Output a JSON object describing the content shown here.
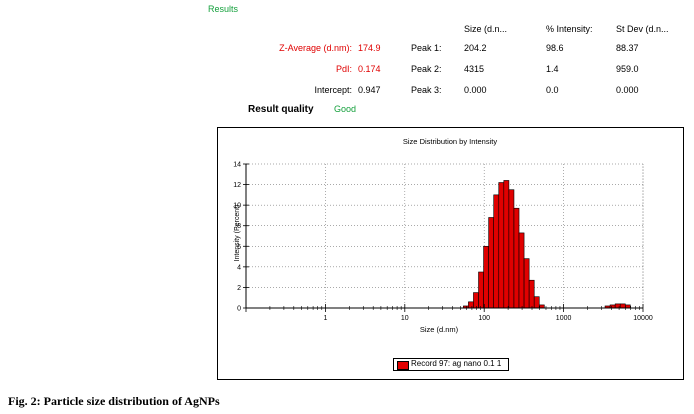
{
  "results": {
    "header": "Results",
    "columns": [
      "Size (d.n...",
      "% Intensity:",
      "St Dev (d.n..."
    ],
    "zavg_label": "Z-Average (d.nm):",
    "zavg_value": "174.9",
    "pdi_label": "PdI:",
    "pdi_value": "0.174",
    "intercept_label": "Intercept:",
    "intercept_value": "0.947",
    "quality_label": "Result quality",
    "quality_value": "Good",
    "peaks": [
      {
        "label": "Peak 1:",
        "size": "204.2",
        "intensity": "98.6",
        "stdev": "88.37"
      },
      {
        "label": "Peak 2:",
        "size": "4315",
        "intensity": "1.4",
        "stdev": "959.0"
      },
      {
        "label": "Peak 3:",
        "size": "0.000",
        "intensity": "0.0",
        "stdev": "0.000"
      }
    ]
  },
  "colors": {
    "bar": "#e00000",
    "highlight": "#e00000",
    "good": "#14a03c"
  },
  "chart_data": {
    "type": "bar",
    "title": "Size Distribution by Intensity",
    "xlabel": "Size (d.nm)",
    "ylabel": "Intensity (Percent)",
    "xscale": "log",
    "xlim": [
      0.1,
      10000
    ],
    "ylim": [
      0,
      14
    ],
    "x_ticks": [
      "0.1",
      "1",
      "10",
      "100",
      "1000",
      "10000"
    ],
    "y_ticks": [
      "0",
      "2",
      "4",
      "6",
      "8",
      "10",
      "12",
      "14"
    ],
    "grid": true,
    "legend": "bottom-center",
    "series": [
      {
        "name": "Record 97: ag nano 0.1 1",
        "x": [
          58.8,
          68.1,
          78.8,
          91.3,
          105.7,
          122.4,
          141.8,
          164.2,
          190.1,
          220.2,
          255.0,
          295.3,
          342.0,
          396.1,
          458.7,
          531.2,
          3580,
          4145,
          4801,
          5560,
          6439
        ],
        "values": [
          0.2,
          0.6,
          1.5,
          3.5,
          6.0,
          8.8,
          11.0,
          12.2,
          12.4,
          11.5,
          9.7,
          7.3,
          4.8,
          2.7,
          1.1,
          0.3,
          0.2,
          0.3,
          0.4,
          0.4,
          0.3
        ]
      }
    ]
  },
  "caption": "Fig. 2: Particle size distribution of AgNPs"
}
